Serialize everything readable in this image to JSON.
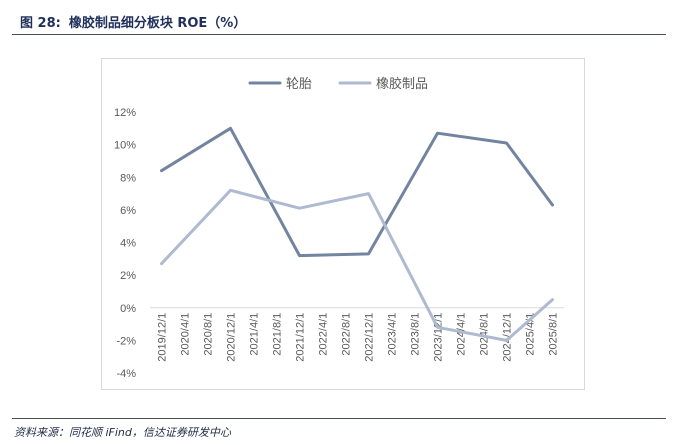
{
  "header": {
    "figure_number": "图 28:",
    "title": "橡胶制品细分板块 ROE（%）"
  },
  "source": "资料来源：同花顺 iFind，信达证券研发中心",
  "colors": {
    "series_1": "#7384a0",
    "series_2": "#aebad0",
    "grid": "#d9d9d9",
    "tick": "#595959"
  },
  "chart_data": {
    "type": "line",
    "title": "",
    "xlabel": "",
    "ylabel": "",
    "ylim": [
      -4,
      12
    ],
    "yticks": [
      12,
      10,
      8,
      6,
      4,
      2,
      0,
      -2,
      -4
    ],
    "ytick_labels": [
      "12%",
      "10%",
      "8%",
      "6%",
      "4%",
      "2%",
      "0%",
      "-2%",
      "-4%"
    ],
    "categories": [
      "2019/12/1",
      "2020/4/1",
      "2020/8/1",
      "2020/12/1",
      "2021/4/1",
      "2021/8/1",
      "2021/12/1",
      "2022/4/1",
      "2022/8/1",
      "2022/12/1",
      "2023/4/1",
      "2023/8/1",
      "2023/12/1",
      "2024/4/1",
      "2024/8/1",
      "2024/12/1",
      "2025/4/1",
      "2025/8/1"
    ],
    "legend_position": "top-center",
    "series": [
      {
        "name": "轮胎",
        "color": "#7384a0",
        "values": [
          8.4,
          null,
          null,
          11.0,
          null,
          null,
          3.2,
          null,
          null,
          3.3,
          null,
          null,
          10.7,
          null,
          null,
          10.1,
          null,
          6.3
        ]
      },
      {
        "name": "橡胶制品",
        "color": "#aebad0",
        "values": [
          2.7,
          null,
          null,
          7.2,
          null,
          null,
          6.1,
          null,
          null,
          7.0,
          null,
          null,
          -1.2,
          null,
          null,
          -2.0,
          null,
          0.5
        ]
      }
    ]
  }
}
